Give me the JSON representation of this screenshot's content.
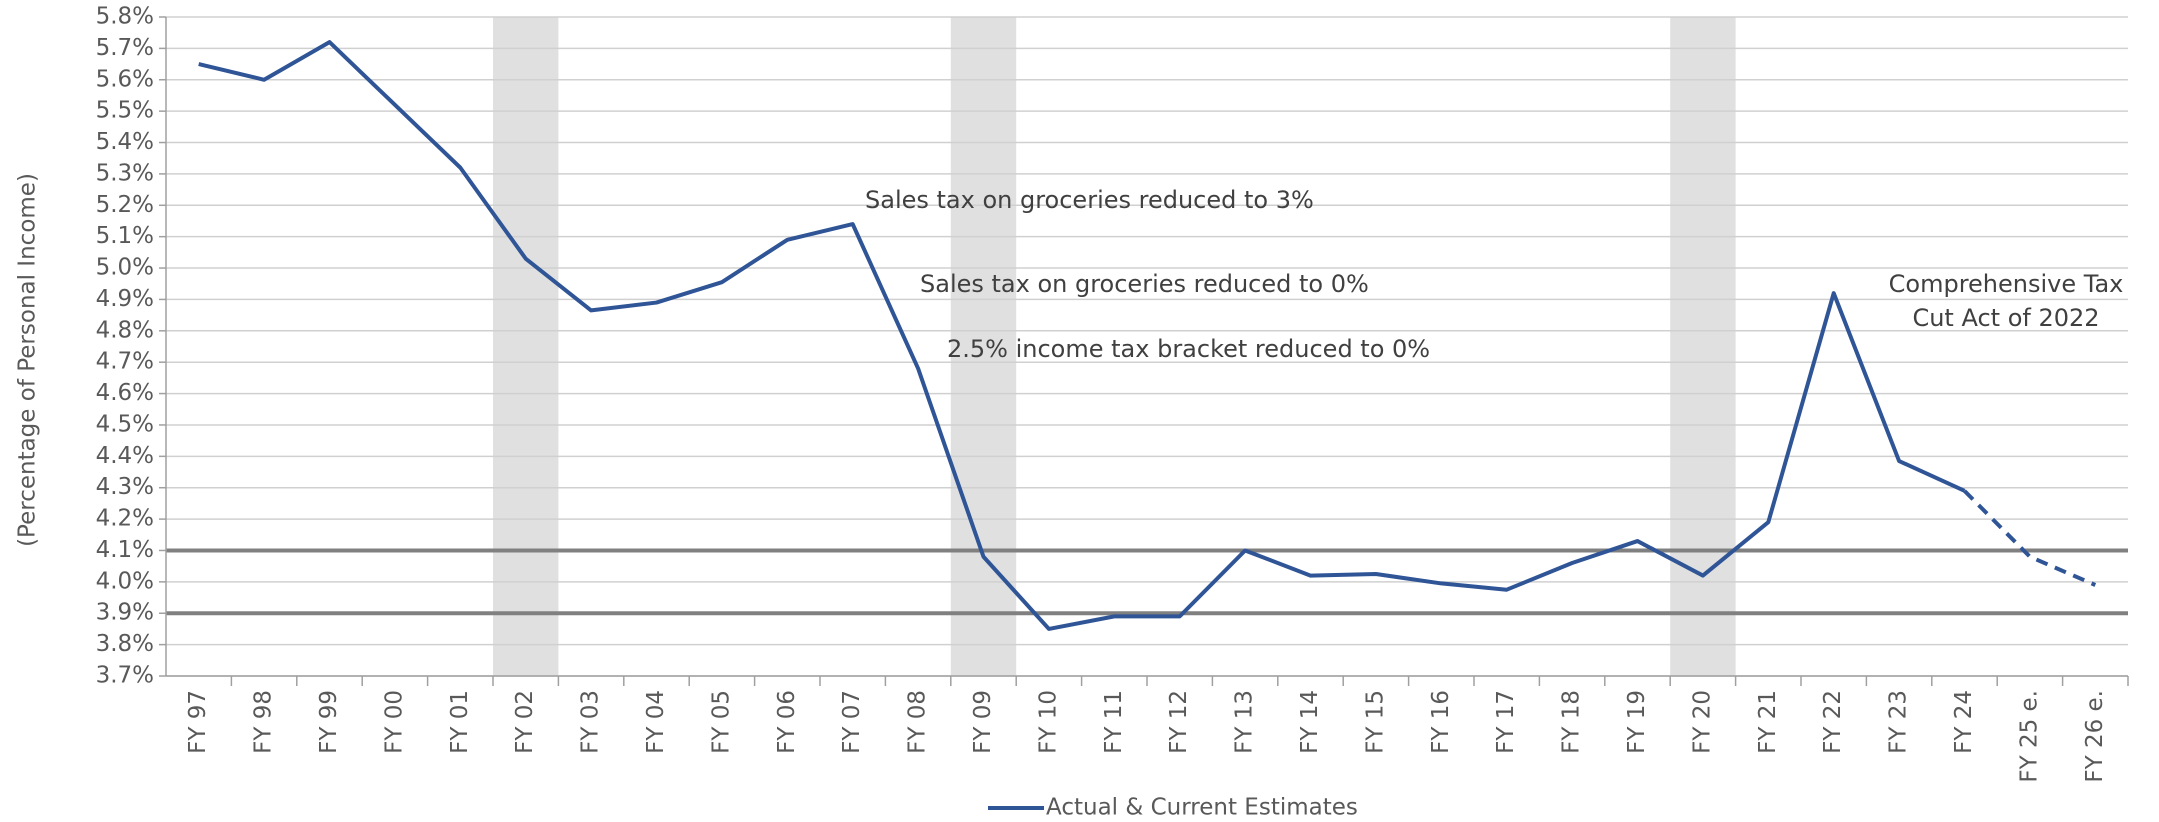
{
  "chart_data": {
    "type": "line",
    "y_axis_label": "(Percentage of Personal Income)",
    "categories": [
      "FY 97",
      "FY 98",
      "FY 99",
      "FY 00",
      "FY 01",
      "FY 02",
      "FY 03",
      "FY 04",
      "FY 05",
      "FY 06",
      "FY 07",
      "FY 08",
      "FY 09",
      "FY 10",
      "FY 11",
      "FY 12",
      "FY 13",
      "FY 14",
      "FY 15",
      "FY 16",
      "FY 17",
      "FY 18",
      "FY 19",
      "FY 20",
      "FY 21",
      "FY 22",
      "FY 23",
      "FY 24",
      "FY 25 e.",
      "FY 26 e."
    ],
    "series": [
      {
        "name": "Actual & Current Estimates",
        "color": "#2f5597",
        "values": [
          5.65,
          5.6,
          5.72,
          5.52,
          5.32,
          5.03,
          4.865,
          4.89,
          4.955,
          5.09,
          5.14,
          4.68,
          4.08,
          3.85,
          3.89,
          3.89,
          4.1,
          4.02,
          4.025,
          3.995,
          3.975,
          4.06,
          4.13,
          4.02,
          4.19,
          4.92,
          4.385,
          4.29,
          4.08,
          3.99
        ]
      }
    ],
    "dashed_from": "FY 24",
    "shaded_categories": [
      "FY 02",
      "FY 09",
      "FY 20"
    ],
    "shade_color": "#e0e0e0",
    "reference_lines": [
      4.1,
      3.9
    ],
    "reference_color": "#808080",
    "ylim": [
      3.7,
      5.8
    ],
    "yticks": [
      {
        "value": 3.7,
        "label": "3.7%"
      },
      {
        "value": 3.8,
        "label": "3.8%"
      },
      {
        "value": 3.9,
        "label": "3.9%"
      },
      {
        "value": 4.0,
        "label": "4.0%"
      },
      {
        "value": 4.1,
        "label": "4.1%"
      },
      {
        "value": 4.2,
        "label": "4.2%"
      },
      {
        "value": 4.3,
        "label": "4.3%"
      },
      {
        "value": 4.4,
        "label": "4.4%"
      },
      {
        "value": 4.5,
        "label": "4.5%"
      },
      {
        "value": 4.6,
        "label": "4.6%"
      },
      {
        "value": 4.7,
        "label": "4.7%"
      },
      {
        "value": 4.8,
        "label": "4.8%"
      },
      {
        "value": 4.9,
        "label": "4.9%"
      },
      {
        "value": 5.0,
        "label": "5.0%"
      },
      {
        "value": 5.1,
        "label": "5.1%"
      },
      {
        "value": 5.2,
        "label": "5.2%"
      },
      {
        "value": 5.3,
        "label": "5.3%"
      },
      {
        "value": 5.4,
        "label": "5.4%"
      },
      {
        "value": 5.5,
        "label": "5.5%"
      },
      {
        "value": 5.6,
        "label": "5.6%"
      },
      {
        "value": 5.7,
        "label": "5.7%"
      },
      {
        "value": 5.8,
        "label": "5.8%"
      }
    ],
    "grid": true,
    "legend": "bottom",
    "annotations": [
      {
        "lines": [
          "Sales tax on groceries reduced to 3%"
        ]
      },
      {
        "lines": [
          "Sales tax on groceries reduced to 0%"
        ]
      },
      {
        "lines": [
          "2.5% income tax bracket reduced to 0%"
        ]
      },
      {
        "lines": [
          "Comprehensive Tax",
          "Cut Act of 2022"
        ]
      }
    ]
  }
}
